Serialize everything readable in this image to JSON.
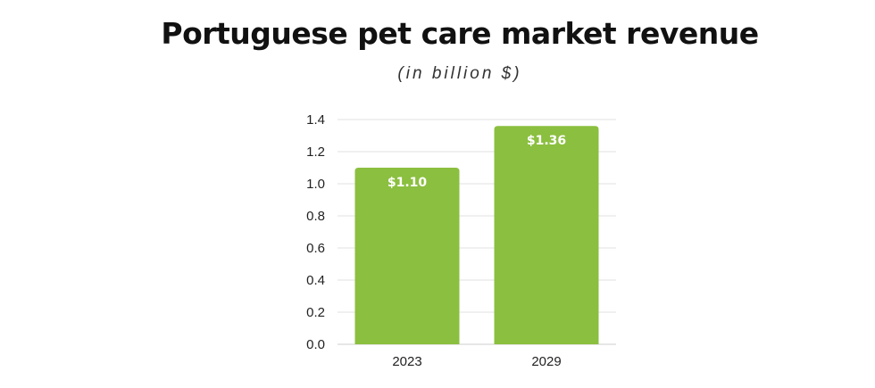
{
  "chart_data": {
    "type": "bar",
    "title": "Portuguese pet care market revenue",
    "subtitle": "(in billion $)",
    "categories": [
      "2023",
      "2029"
    ],
    "values": [
      1.1,
      1.36
    ],
    "data_labels": [
      "$1.10",
      "$1.36"
    ],
    "ylim": [
      0,
      1.4
    ],
    "yticks": [
      "0.0",
      "0.2",
      "0.4",
      "0.6",
      "0.8",
      "1.0",
      "1.2",
      "1.4"
    ],
    "grid": true,
    "legend": "none",
    "bar_color": "#8bbf3f"
  }
}
